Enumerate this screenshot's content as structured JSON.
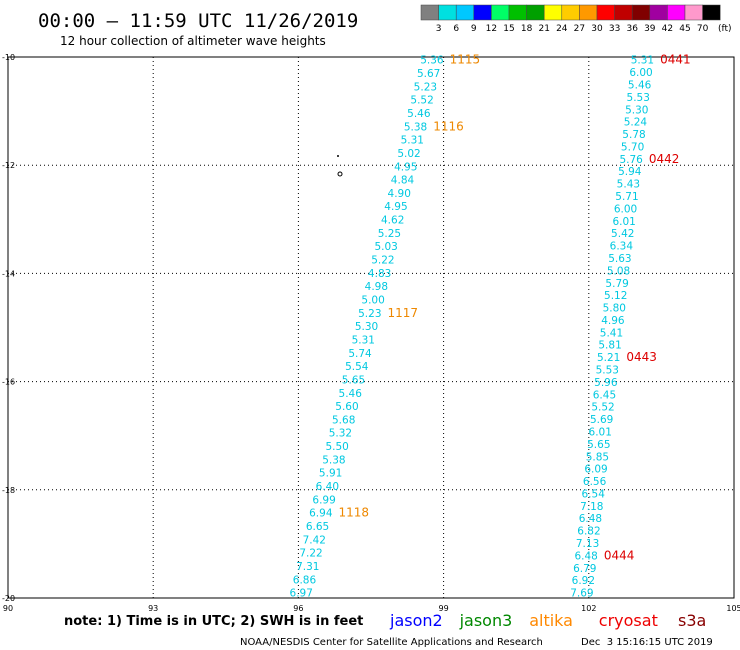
{
  "header": {
    "title": "00:00 – 11:59 UTC 11/26/2019",
    "subtitle": "12 hour collection of altimeter wave heights"
  },
  "colorbar": {
    "labels": [
      "3",
      "6",
      "9",
      "12",
      "15",
      "18",
      "21",
      "24",
      "27",
      "30",
      "33",
      "36",
      "39",
      "42",
      "45",
      "70"
    ],
    "colors": [
      "#808080",
      "#00e0e0",
      "#00c8ff",
      "#0000ff",
      "#00ff66",
      "#00c000",
      "#00a000",
      "#ffff00",
      "#ffcc00",
      "#ff9900",
      "#ff0000",
      "#c00000",
      "#800000",
      "#a000a0",
      "#ff00ff",
      "#ff99cc",
      "#000000"
    ],
    "unit": "(ft)"
  },
  "axes": {
    "x_ticks": [
      90,
      93,
      96,
      99,
      102,
      105
    ],
    "y_ticks": [
      -10,
      -12,
      -14,
      -16,
      -18,
      -20
    ],
    "x_range": [
      90,
      105
    ],
    "y_range": [
      -20,
      -10
    ]
  },
  "footer": {
    "note": "note: 1) Time is in UTC; 2) SWH is in feet",
    "satellites": [
      {
        "name": "jason2",
        "color": "#0000ff"
      },
      {
        "name": "jason3",
        "color": "#008800"
      },
      {
        "name": "altika",
        "color": "#ff8800"
      },
      {
        "name": "cryosat",
        "color": "#ee0000"
      },
      {
        "name": "s3a",
        "color": "#880000"
      }
    ],
    "credit": "NOAA/NESDIS Center for Satellite Applications and Research",
    "timestamp": "Dec  3 15:16:15 UTC 2019"
  },
  "tracks": [
    {
      "name": "track-left",
      "color": "#00c8e0",
      "start": [
        99.0,
        -10.05
      ],
      "end": [
        96.3,
        -19.9
      ],
      "values": [
        "5.36",
        "5.67",
        "5.23",
        "5.52",
        "5.46",
        "5.38",
        "5.31",
        "5.02",
        "4.95",
        "4.84",
        "4.90",
        "4.95",
        "4.62",
        "5.25",
        "5.03",
        "5.22",
        "4.83",
        "4.98",
        "5.00",
        "5.23",
        "5.30",
        "5.31",
        "5.74",
        "5.54",
        "5.65",
        "5.46",
        "5.60",
        "5.68",
        "5.32",
        "5.50",
        "5.38",
        "5.91",
        "6.40",
        "6.99",
        "6.94",
        "6.65",
        "7.42",
        "7.22",
        "7.31",
        "6.86",
        "6.97"
      ],
      "times": [
        {
          "label": "1115",
          "index": 0,
          "color": "#ee8800"
        },
        {
          "label": "1116",
          "index": 5,
          "color": "#ee8800"
        },
        {
          "label": "1117",
          "index": 19,
          "color": "#ee8800"
        },
        {
          "label": "1118",
          "index": 34,
          "color": "#ee8800"
        }
      ]
    },
    {
      "name": "track-right",
      "color": "#00c8e0",
      "start": [
        103.35,
        -10.05
      ],
      "end": [
        102.1,
        -19.9
      ],
      "values": [
        "5.31",
        "6.00",
        "5.46",
        "5.53",
        "5.30",
        "5.24",
        "5.78",
        "5.70",
        "5.76",
        "5.94",
        "5.43",
        "5.71",
        "6.00",
        "6.01",
        "5.42",
        "6.34",
        "5.63",
        "5.08",
        "5.79",
        "5.12",
        "5.80",
        "4.96",
        "5.41",
        "5.81",
        "5.21",
        "5.53",
        "5.96",
        "6.45",
        "5.52",
        "5.69",
        "6.01",
        "5.65",
        "5.85",
        "6.09",
        "6.56",
        "6.54",
        "7.18",
        "6.48",
        "6.82",
        "7.13",
        "6.48",
        "6.79",
        "6.92",
        "7.69"
      ],
      "times": [
        {
          "label": "0441",
          "index": 0,
          "color": "#dd0000"
        },
        {
          "label": "0442",
          "index": 8,
          "color": "#dd0000"
        },
        {
          "label": "0443",
          "index": 24,
          "color": "#dd0000"
        },
        {
          "label": "0444",
          "index": 40,
          "color": "#dd0000"
        }
      ]
    }
  ]
}
